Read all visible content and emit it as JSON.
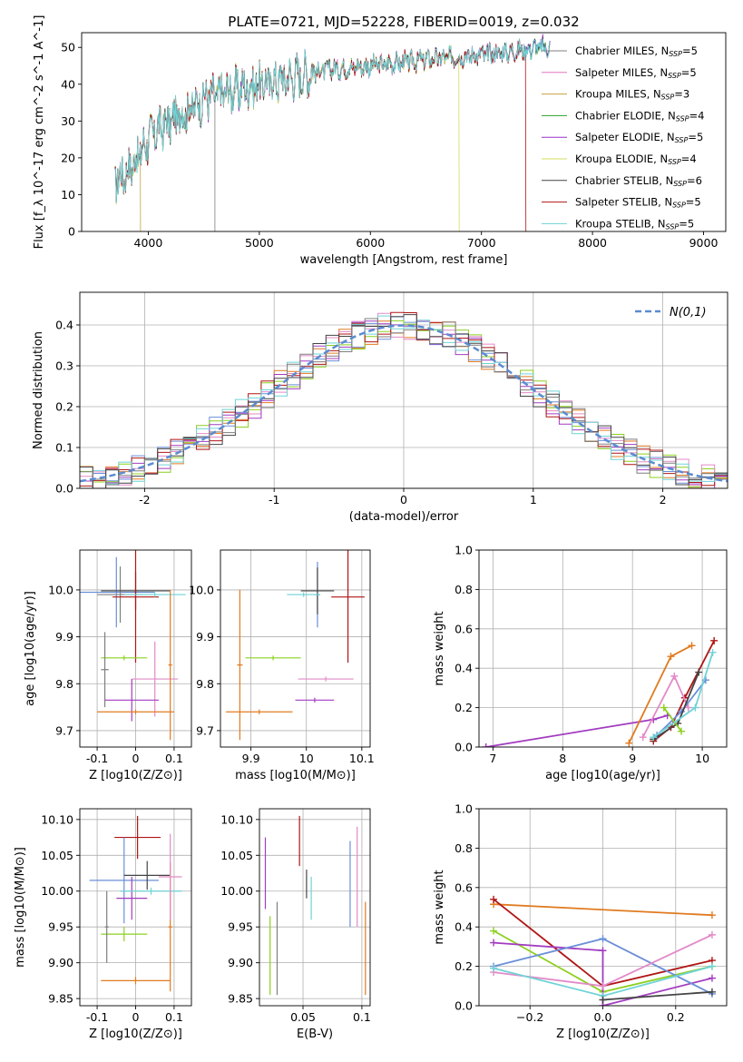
{
  "figure_title": "PLATE=0721, MJD=52228, FIBERID=0019, z=0.032",
  "colors": {
    "chabrier_miles": "#7f7f7f",
    "salpeter_miles": "#e377c2",
    "kroupa_miles": "#c8a040",
    "chabrier_elodie": "#2ca02c",
    "salpeter_elodie": "#9b30c8",
    "kroupa_elodie": "#d4dc5c",
    "chabrier_stelib": "#444444",
    "salpeter_stelib": "#b01515",
    "kroupa_stelib": "#6fd3d6",
    "blue": "#6a8fd8",
    "orange": "#e07b20",
    "lime": "#8cd020",
    "pink": "#e28ac8",
    "purple": "#a23cc0",
    "red": "#b01515",
    "cyan": "#6fd3d6",
    "dark": "#444444",
    "gray": "#7f7f7f",
    "grid": "#b0b0b0",
    "normal": "#5b8bd0"
  },
  "chart_data": [
    {
      "id": "spectrum",
      "type": "line",
      "title": "PLATE=0721, MJD=52228, FIBERID=0019, z=0.032",
      "xlabel": "wavelength [Angstrom, rest frame]",
      "ylabel": "Flux [f_λ 10^-17 erg cm^-2 s^-1 A^-1]",
      "xlim": [
        3400,
        9200
      ],
      "ylim": [
        0,
        54
      ],
      "xticks": [
        4000,
        5000,
        6000,
        7000,
        8000,
        9000
      ],
      "yticks": [
        0,
        10,
        20,
        30,
        40,
        50
      ],
      "grid": false,
      "legend_position": "right",
      "continuum": {
        "x": [
          3700,
          3800,
          3900,
          4000,
          4100,
          4300,
          4500,
          4700,
          5000,
          5300,
          5600,
          6000,
          6300,
          6600,
          7000,
          7300,
          7500,
          7600
        ],
        "y": [
          14,
          16,
          20,
          25,
          28,
          32,
          36,
          38,
          40,
          42,
          44,
          45,
          46,
          47,
          48,
          49,
          50,
          50
        ]
      },
      "cutoffs": [
        {
          "model": "Kroupa MILES",
          "x": 3930
        },
        {
          "model": "Chabrier MILES",
          "x": 4600
        },
        {
          "model": "Kroupa ELODIE",
          "x": 6800
        },
        {
          "model": "Salpeter STELIB",
          "x": 7400
        }
      ],
      "series": [
        {
          "name": "Chabrier MILES",
          "n_ssp": 5,
          "color_key": "chabrier_miles"
        },
        {
          "name": "Salpeter MILES",
          "n_ssp": 5,
          "color_key": "salpeter_miles"
        },
        {
          "name": "Kroupa MILES",
          "n_ssp": 3,
          "color_key": "kroupa_miles"
        },
        {
          "name": "Chabrier ELODIE",
          "n_ssp": 4,
          "color_key": "chabrier_elodie"
        },
        {
          "name": "Salpeter ELODIE",
          "n_ssp": 5,
          "color_key": "salpeter_elodie"
        },
        {
          "name": "Kroupa ELODIE",
          "n_ssp": 4,
          "color_key": "kroupa_elodie"
        },
        {
          "name": "Chabrier STELIB",
          "n_ssp": 6,
          "color_key": "chabrier_stelib"
        },
        {
          "name": "Salpeter STELIB",
          "n_ssp": 5,
          "color_key": "salpeter_stelib"
        },
        {
          "name": "Kroupa STELIB",
          "n_ssp": 5,
          "color_key": "kroupa_stelib"
        }
      ]
    },
    {
      "id": "residuals",
      "type": "histogram",
      "xlabel": "(data-model)/error",
      "ylabel": "Normed distribution",
      "xlim": [
        -2.5,
        2.5
      ],
      "ylim": [
        0,
        0.48
      ],
      "xticks": [
        -2,
        -1,
        0,
        1,
        2
      ],
      "yticks": [
        0.0,
        0.1,
        0.2,
        0.3,
        0.4
      ],
      "grid": true,
      "bin_width": 0.1,
      "legend": {
        "label": "N(0,1)",
        "position": "top-right"
      },
      "series_colors": [
        "blue",
        "orange",
        "lime",
        "pink",
        "purple",
        "red",
        "cyan",
        "dark",
        "gray"
      ]
    },
    {
      "id": "age_vs_Z",
      "type": "errorbar",
      "xlabel": "Z [log10(Z/Z⊙)]",
      "ylabel": "age [log10(age/yr)]",
      "xlim": [
        -0.145,
        0.145
      ],
      "ylim": [
        9.665,
        10.085
      ],
      "xticks": [
        -0.1,
        0.0,
        0.1
      ],
      "yticks": [
        9.7,
        9.8,
        9.9,
        10.0
      ],
      "grid": true,
      "points": [
        {
          "color": "blue",
          "x": -0.05,
          "xerr": 0.1,
          "y": 9.995,
          "yerr": 0.075
        },
        {
          "color": "gray",
          "x": -0.04,
          "xerr": 0.06,
          "y": 9.99,
          "yerr": 0.06
        },
        {
          "color": "dark",
          "x": 0.0,
          "xerr": 0.09,
          "y": 9.998,
          "yerr": 0.04
        },
        {
          "color": "red",
          "x": 0.0,
          "xerr": 0.06,
          "y": 9.985,
          "yerr": 0.14
        },
        {
          "color": "cyan",
          "x": 0.05,
          "xerr": 0.08,
          "y": 9.99,
          "yerr": 0.005
        },
        {
          "color": "lime",
          "x": -0.03,
          "xerr": 0.06,
          "y": 9.855,
          "yerr": 0.005
        },
        {
          "color": "gray",
          "x": -0.08,
          "xerr": 0.01,
          "y": 9.83,
          "yerr": 0.08
        },
        {
          "color": "pink",
          "x": 0.05,
          "xerr": 0.06,
          "y": 9.81,
          "yerr": 0.08
        },
        {
          "color": "purple",
          "x": -0.01,
          "xerr": 0.07,
          "y": 9.765,
          "yerr": 0.045
        },
        {
          "color": "orange",
          "x": 0.0,
          "xerr": 0.1,
          "y": 9.74,
          "yerr": 0.005
        },
        {
          "color": "orange",
          "x": 0.09,
          "xerr": 0.005,
          "y": 9.84,
          "yerr": 0.16
        }
      ]
    },
    {
      "id": "age_vs_mass",
      "type": "errorbar",
      "xlabel": "mass [log10(M/M⊙)]",
      "ylabel": "",
      "xlim": [
        9.845,
        10.115
      ],
      "ylim": [
        9.665,
        10.085
      ],
      "xticks": [
        9.9,
        10.0,
        10.1
      ],
      "yticks": [
        9.7,
        9.8,
        9.9,
        10.0
      ],
      "grid": true,
      "points": [
        {
          "color": "orange",
          "x": 9.88,
          "xerr": 0.005,
          "y": 9.84,
          "yerr": 0.16
        },
        {
          "color": "orange",
          "x": 9.915,
          "xerr": 0.06,
          "y": 9.74,
          "yerr": 0.005
        },
        {
          "color": "lime",
          "x": 9.94,
          "xerr": 0.05,
          "y": 9.855,
          "yerr": 0.005
        },
        {
          "color": "blue",
          "x": 10.02,
          "xerr": 0.005,
          "y": 9.99,
          "yerr": 0.07
        },
        {
          "color": "dark",
          "x": 10.02,
          "xerr": 0.03,
          "y": 9.998,
          "yerr": 0.05
        },
        {
          "color": "cyan",
          "x": 9.995,
          "xerr": 0.03,
          "y": 9.99,
          "yerr": 0.005
        },
        {
          "color": "red",
          "x": 10.075,
          "xerr": 0.03,
          "y": 9.985,
          "yerr": 0.14
        },
        {
          "color": "pink",
          "x": 10.035,
          "xerr": 0.05,
          "y": 9.81,
          "yerr": 0.005
        },
        {
          "color": "purple",
          "x": 10.015,
          "xerr": 0.035,
          "y": 9.765,
          "yerr": 0.005
        }
      ]
    },
    {
      "id": "mass_weight_vs_age",
      "type": "line",
      "xlabel": "age [log10(age/yr)]",
      "ylabel": "mass weight",
      "xlim": [
        6.8,
        10.35
      ],
      "ylim": [
        0,
        1.0
      ],
      "xticks": [
        7,
        8,
        9,
        10
      ],
      "yticks": [
        0.0,
        0.2,
        0.4,
        0.6,
        0.8,
        1.0
      ],
      "grid": true,
      "series": [
        {
          "color": "purple",
          "x": [
            6.9,
            9.3,
            9.5
          ],
          "y": [
            0.0,
            0.14,
            0.16
          ]
        },
        {
          "color": "orange",
          "x": [
            8.95,
            9.55,
            9.85
          ],
          "y": [
            0.02,
            0.46,
            0.515
          ]
        },
        {
          "color": "red",
          "x": [
            9.3,
            9.55,
            9.75,
            10.17
          ],
          "y": [
            0.03,
            0.1,
            0.25,
            0.54
          ]
        },
        {
          "color": "pink",
          "x": [
            9.15,
            9.6,
            9.8
          ],
          "y": [
            0.05,
            0.36,
            0.2
          ]
        },
        {
          "color": "blue",
          "x": [
            9.35,
            9.7,
            10.05
          ],
          "y": [
            0.06,
            0.18,
            0.34
          ]
        },
        {
          "color": "dark",
          "x": [
            9.3,
            9.65,
            9.95
          ],
          "y": [
            0.04,
            0.12,
            0.38
          ]
        },
        {
          "color": "lime",
          "x": [
            9.45,
            9.7
          ],
          "y": [
            0.2,
            0.08
          ]
        },
        {
          "color": "cyan",
          "x": [
            9.3,
            9.9,
            10.15
          ],
          "y": [
            0.05,
            0.2,
            0.48
          ]
        }
      ]
    },
    {
      "id": "mass_vs_Z",
      "type": "errorbar",
      "xlabel": "Z [log10(Z/Z⊙)]",
      "ylabel": "mass [log10(M/M⊙)]",
      "xlim": [
        -0.145,
        0.145
      ],
      "ylim": [
        9.84,
        10.115
      ],
      "xticks": [
        -0.1,
        0.0,
        0.1
      ],
      "yticks": [
        9.85,
        9.9,
        9.95,
        10.0,
        10.05,
        10.1
      ],
      "grid": true,
      "points": [
        {
          "color": "red",
          "x": 0.005,
          "xerr": 0.06,
          "y": 10.075,
          "yerr": 0.03
        },
        {
          "color": "blue",
          "x": -0.03,
          "xerr": 0.09,
          "y": 10.015,
          "yerr": 0.06
        },
        {
          "color": "dark",
          "x": 0.03,
          "xerr": 0.06,
          "y": 10.022,
          "yerr": 0.02
        },
        {
          "color": "purple",
          "x": -0.01,
          "xerr": 0.04,
          "y": 9.99,
          "yerr": 0.03
        },
        {
          "color": "cyan",
          "x": 0.04,
          "xerr": 0.08,
          "y": 10.0,
          "yerr": 0.005
        },
        {
          "color": "lime",
          "x": -0.03,
          "xerr": 0.06,
          "y": 9.94,
          "yerr": 0.01
        },
        {
          "color": "gray",
          "x": -0.075,
          "xerr": 0.005,
          "y": 9.95,
          "yerr": 0.05
        },
        {
          "color": "orange",
          "x": 0.0,
          "xerr": 0.09,
          "y": 9.875,
          "yerr": 0.005
        },
        {
          "color": "orange",
          "x": 0.09,
          "xerr": 0.005,
          "y": 9.95,
          "yerr": 0.09
        },
        {
          "color": "pink",
          "x": 0.09,
          "xerr": 0.03,
          "y": 10.02,
          "yerr": 0.06
        }
      ]
    },
    {
      "id": "mass_vs_ebv",
      "type": "errorbar",
      "xlabel": "E(B-V)",
      "ylabel": "",
      "xlim": [
        0.013,
        0.107
      ],
      "ylim": [
        9.84,
        10.115
      ],
      "xticks": [
        0.05,
        0.1
      ],
      "yticks": [
        9.85,
        9.9,
        9.95,
        10.0,
        10.05,
        10.1
      ],
      "grid": true,
      "points": [
        {
          "color": "purple",
          "x": 0.018,
          "y": 10.025,
          "yerr": 0.05
        },
        {
          "color": "lime",
          "x": 0.022,
          "y": 9.91,
          "yerr": 0.055
        },
        {
          "color": "gray",
          "x": 0.028,
          "y": 9.92,
          "yerr": 0.065
        },
        {
          "color": "red",
          "x": 0.047,
          "y": 10.07,
          "yerr": 0.035
        },
        {
          "color": "dark",
          "x": 0.053,
          "y": 10.01,
          "yerr": 0.02
        },
        {
          "color": "cyan",
          "x": 0.057,
          "y": 9.99,
          "yerr": 0.03
        },
        {
          "color": "blue",
          "x": 0.09,
          "y": 10.01,
          "yerr": 0.06
        },
        {
          "color": "pink",
          "x": 0.096,
          "y": 10.02,
          "yerr": 0.07
        },
        {
          "color": "orange",
          "x": 0.103,
          "y": 9.92,
          "yerr": 0.065
        }
      ]
    },
    {
      "id": "mass_weight_vs_Z",
      "type": "line",
      "xlabel": "Z [log10(Z/Z⊙)]",
      "ylabel": "mass weight",
      "xlim": [
        -0.34,
        0.34
      ],
      "ylim": [
        0,
        1.0
      ],
      "xticks": [
        -0.2,
        0.0,
        0.2
      ],
      "yticks": [
        0.0,
        0.2,
        0.4,
        0.6,
        0.8,
        1.0
      ],
      "grid": true,
      "series": [
        {
          "color": "orange",
          "x": [
            -0.3,
            0.3
          ],
          "y": [
            0.515,
            0.46
          ]
        },
        {
          "color": "red",
          "x": [
            -0.3,
            0.0,
            0.3
          ],
          "y": [
            0.54,
            0.1,
            0.23
          ]
        },
        {
          "color": "lime",
          "x": [
            -0.3,
            0.0,
            0.3
          ],
          "y": [
            0.38,
            0.07,
            0.2
          ]
        },
        {
          "color": "purple",
          "x": [
            -0.3,
            0.0,
            0.0,
            0.3
          ],
          "y": [
            0.32,
            0.28,
            0.0,
            0.14
          ]
        },
        {
          "color": "blue",
          "x": [
            -0.3,
            0.0,
            0.3
          ],
          "y": [
            0.2,
            0.34,
            0.06
          ]
        },
        {
          "color": "pink",
          "x": [
            -0.3,
            0.0,
            0.3
          ],
          "y": [
            0.17,
            0.1,
            0.36
          ]
        },
        {
          "color": "cyan",
          "x": [
            -0.3,
            0.0,
            0.3
          ],
          "y": [
            0.19,
            0.05,
            0.2
          ]
        },
        {
          "color": "dark",
          "x": [
            0.0,
            0.3
          ],
          "y": [
            0.03,
            0.07
          ]
        }
      ]
    }
  ]
}
